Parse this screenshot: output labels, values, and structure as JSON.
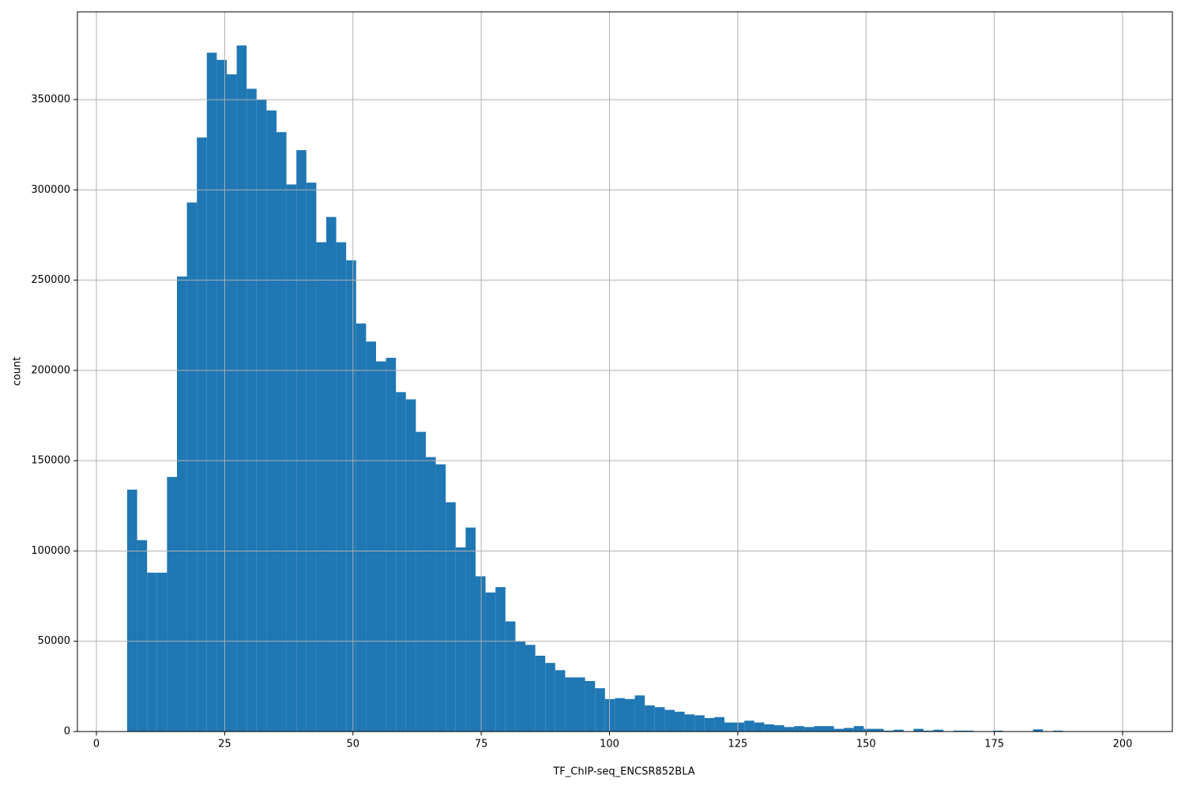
{
  "chart_data": {
    "type": "histogram",
    "xlabel": "TF_ChIP-seq_ENCSR852BLA",
    "ylabel": "count",
    "color": "#1f77b4",
    "grid": true,
    "xlim": [
      -3.7,
      209.7
    ],
    "ylim": [
      0,
      398600
    ],
    "xticks": [
      0,
      25,
      50,
      75,
      100,
      125,
      150,
      175,
      200
    ],
    "yticks": [
      0,
      50000,
      100000,
      150000,
      200000,
      250000,
      300000,
      350000
    ],
    "bins": [
      6.0,
      7.94,
      9.88,
      11.82,
      13.76,
      15.7,
      17.64,
      19.58,
      21.52,
      23.46,
      25.4,
      27.34,
      29.28,
      31.22,
      33.16,
      35.1,
      37.04,
      38.98,
      40.92,
      42.86,
      44.8,
      46.74,
      48.68,
      50.62,
      52.56,
      54.5,
      56.44,
      58.38,
      60.32,
      62.26,
      64.2,
      66.14,
      68.08,
      70.02,
      71.96,
      73.9,
      75.84,
      77.78,
      79.72,
      81.66,
      83.6,
      85.54,
      87.48,
      89.42,
      91.36,
      93.3,
      95.24,
      97.18,
      99.12,
      101.06,
      103.0,
      104.94,
      106.88,
      108.82,
      110.76,
      112.7,
      114.64,
      116.58,
      118.52,
      120.46,
      122.4,
      124.34,
      126.28,
      128.22,
      130.16,
      132.1,
      134.04,
      135.98,
      137.92,
      139.86,
      141.8,
      143.74,
      145.68,
      147.62,
      149.56,
      151.5,
      153.44,
      155.38,
      157.32,
      159.26,
      161.2,
      163.14,
      165.08,
      167.02,
      168.96,
      170.9,
      172.84,
      174.78,
      176.72,
      178.66,
      180.6,
      182.54,
      184.48,
      186.42,
      188.36,
      190.3,
      192.24,
      194.18,
      196.12,
      198.06,
      200.0
    ],
    "counts": [
      134000,
      106000,
      88000,
      88000,
      141000,
      252000,
      293000,
      329000,
      376000,
      372000,
      364000,
      380000,
      356000,
      350000,
      344000,
      332000,
      303000,
      322000,
      304000,
      271000,
      285000,
      271000,
      261000,
      226000,
      216000,
      205000,
      207000,
      188000,
      184000,
      166000,
      152000,
      148000,
      127000,
      102000,
      113000,
      86000,
      77000,
      80000,
      61000,
      50000,
      48000,
      42000,
      38000,
      34000,
      30000,
      30000,
      28000,
      24000,
      18000,
      18500,
      18000,
      20000,
      14500,
      13500,
      12000,
      11000,
      9500,
      9000,
      7500,
      8000,
      5000,
      5000,
      6000,
      5000,
      4000,
      3500,
      2500,
      3000,
      2500,
      3000,
      3000,
      1500,
      2000,
      3000,
      1500,
      1500,
      500,
      1000,
      0,
      1500,
      500,
      1000,
      0,
      500,
      500,
      0,
      0,
      500,
      0,
      0,
      0,
      1200,
      0,
      500,
      0,
      0,
      0,
      0,
      0,
      0
    ]
  }
}
